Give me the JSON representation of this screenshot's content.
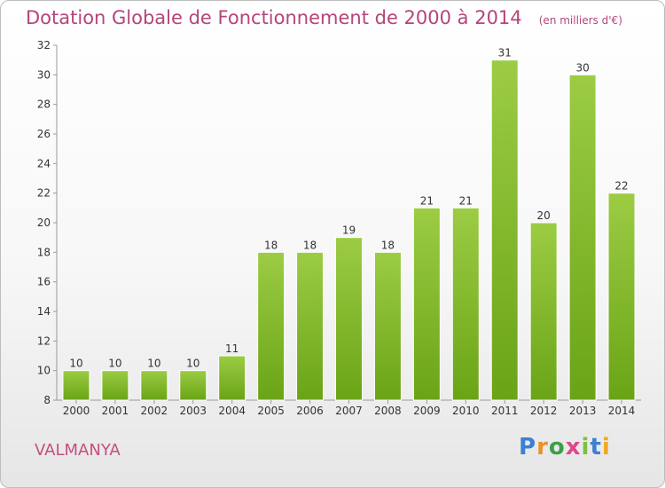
{
  "chart_data": {
    "type": "bar",
    "title": "Dotation Globale de Fonctionnement de 2000 à 2014",
    "subtitle": "(en milliers d'€)",
    "xlabel": "",
    "ylabel": "",
    "categories": [
      "2000",
      "2001",
      "2002",
      "2003",
      "2004",
      "2005",
      "2006",
      "2007",
      "2008",
      "2009",
      "2010",
      "2011",
      "2012",
      "2013",
      "2014"
    ],
    "values": [
      10,
      10,
      10,
      10,
      11,
      18,
      18,
      19,
      18,
      21,
      21,
      31,
      20,
      30,
      22
    ],
    "ylim": [
      8,
      32
    ],
    "yticks": [
      8,
      10,
      12,
      14,
      16,
      18,
      20,
      22,
      24,
      26,
      28,
      30,
      32
    ],
    "grid": false,
    "legend": "none",
    "bar_color_top": "#9ccc44",
    "bar_color_bottom": "#6aa416"
  },
  "footer": {
    "commune": "VALMANYA",
    "logo_text": "Proxiti"
  },
  "colors": {
    "title": "#b5457a",
    "commune": "#c2507f"
  }
}
